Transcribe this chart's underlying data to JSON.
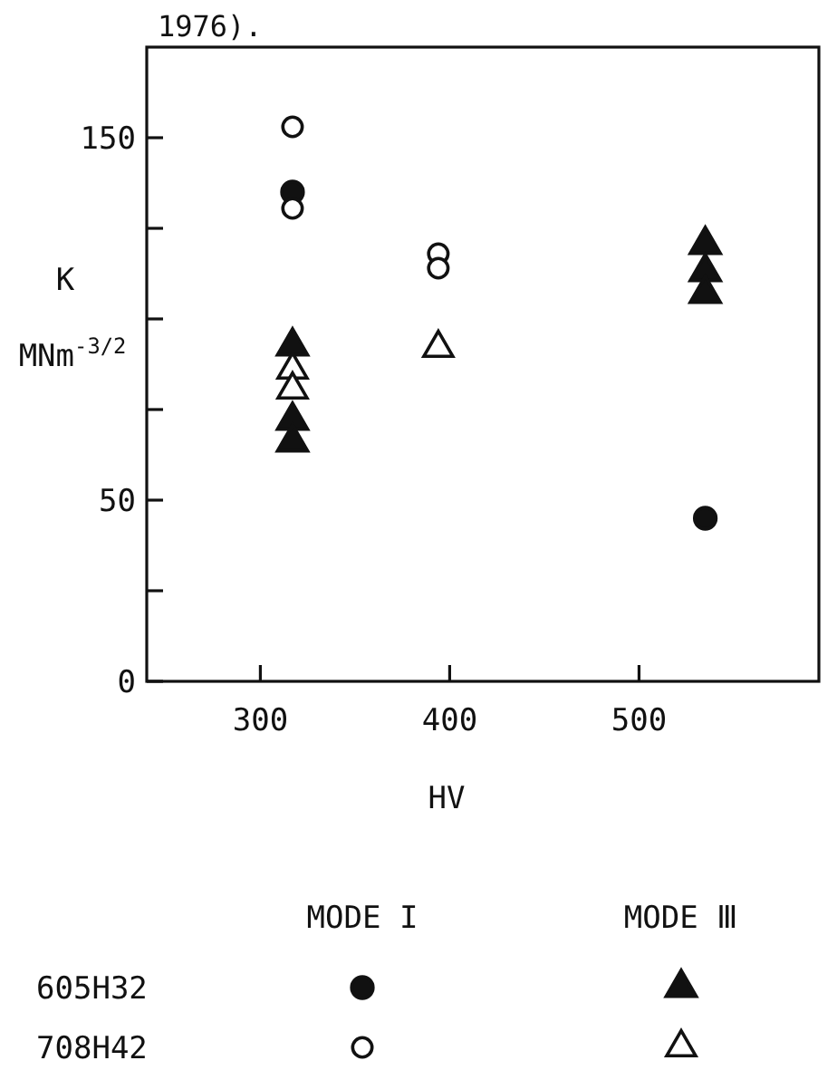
{
  "chart_data": {
    "type": "scatter",
    "xlabel": "HV",
    "ylabel": "K\nMNm$^{-3/2}$",
    "xlim": [
      240,
      595
    ],
    "ylim": [
      0,
      175
    ],
    "xticks": [
      300,
      400,
      500
    ],
    "yticks": [
      0,
      {
        "value": 25,
        "label": null
      },
      50,
      {
        "value": 75,
        "label": null
      },
      {
        "value": 100,
        "label": null
      },
      {
        "value": 125,
        "label": null
      },
      150
    ],
    "series": [
      {
        "marker": "circle",
        "color": "#111111",
        "x": [
          317,
          535
        ],
        "values": [
          135,
          45
        ]
      },
      {
        "marker": "circle-open",
        "color": "#111111",
        "x": [
          317,
          317,
          394,
          394
        ],
        "values": [
          153,
          130.5,
          118,
          114
        ]
      },
      {
        "marker": "triangle",
        "color": "#111111",
        "x": [
          317,
          317,
          317,
          535,
          535,
          535
        ],
        "values": [
          92.5,
          72,
          66,
          120.5,
          113,
          107
        ]
      },
      {
        "marker": "triangle-open",
        "color": "#111111",
        "x": [
          317,
          317,
          394
        ],
        "values": [
          86,
          80.5,
          92
        ]
      }
    ],
    "annotations": [
      "1976).",
      "MODE I",
      "MODE Ⅲ",
      "605H32",
      "708H42"
    ]
  }
}
